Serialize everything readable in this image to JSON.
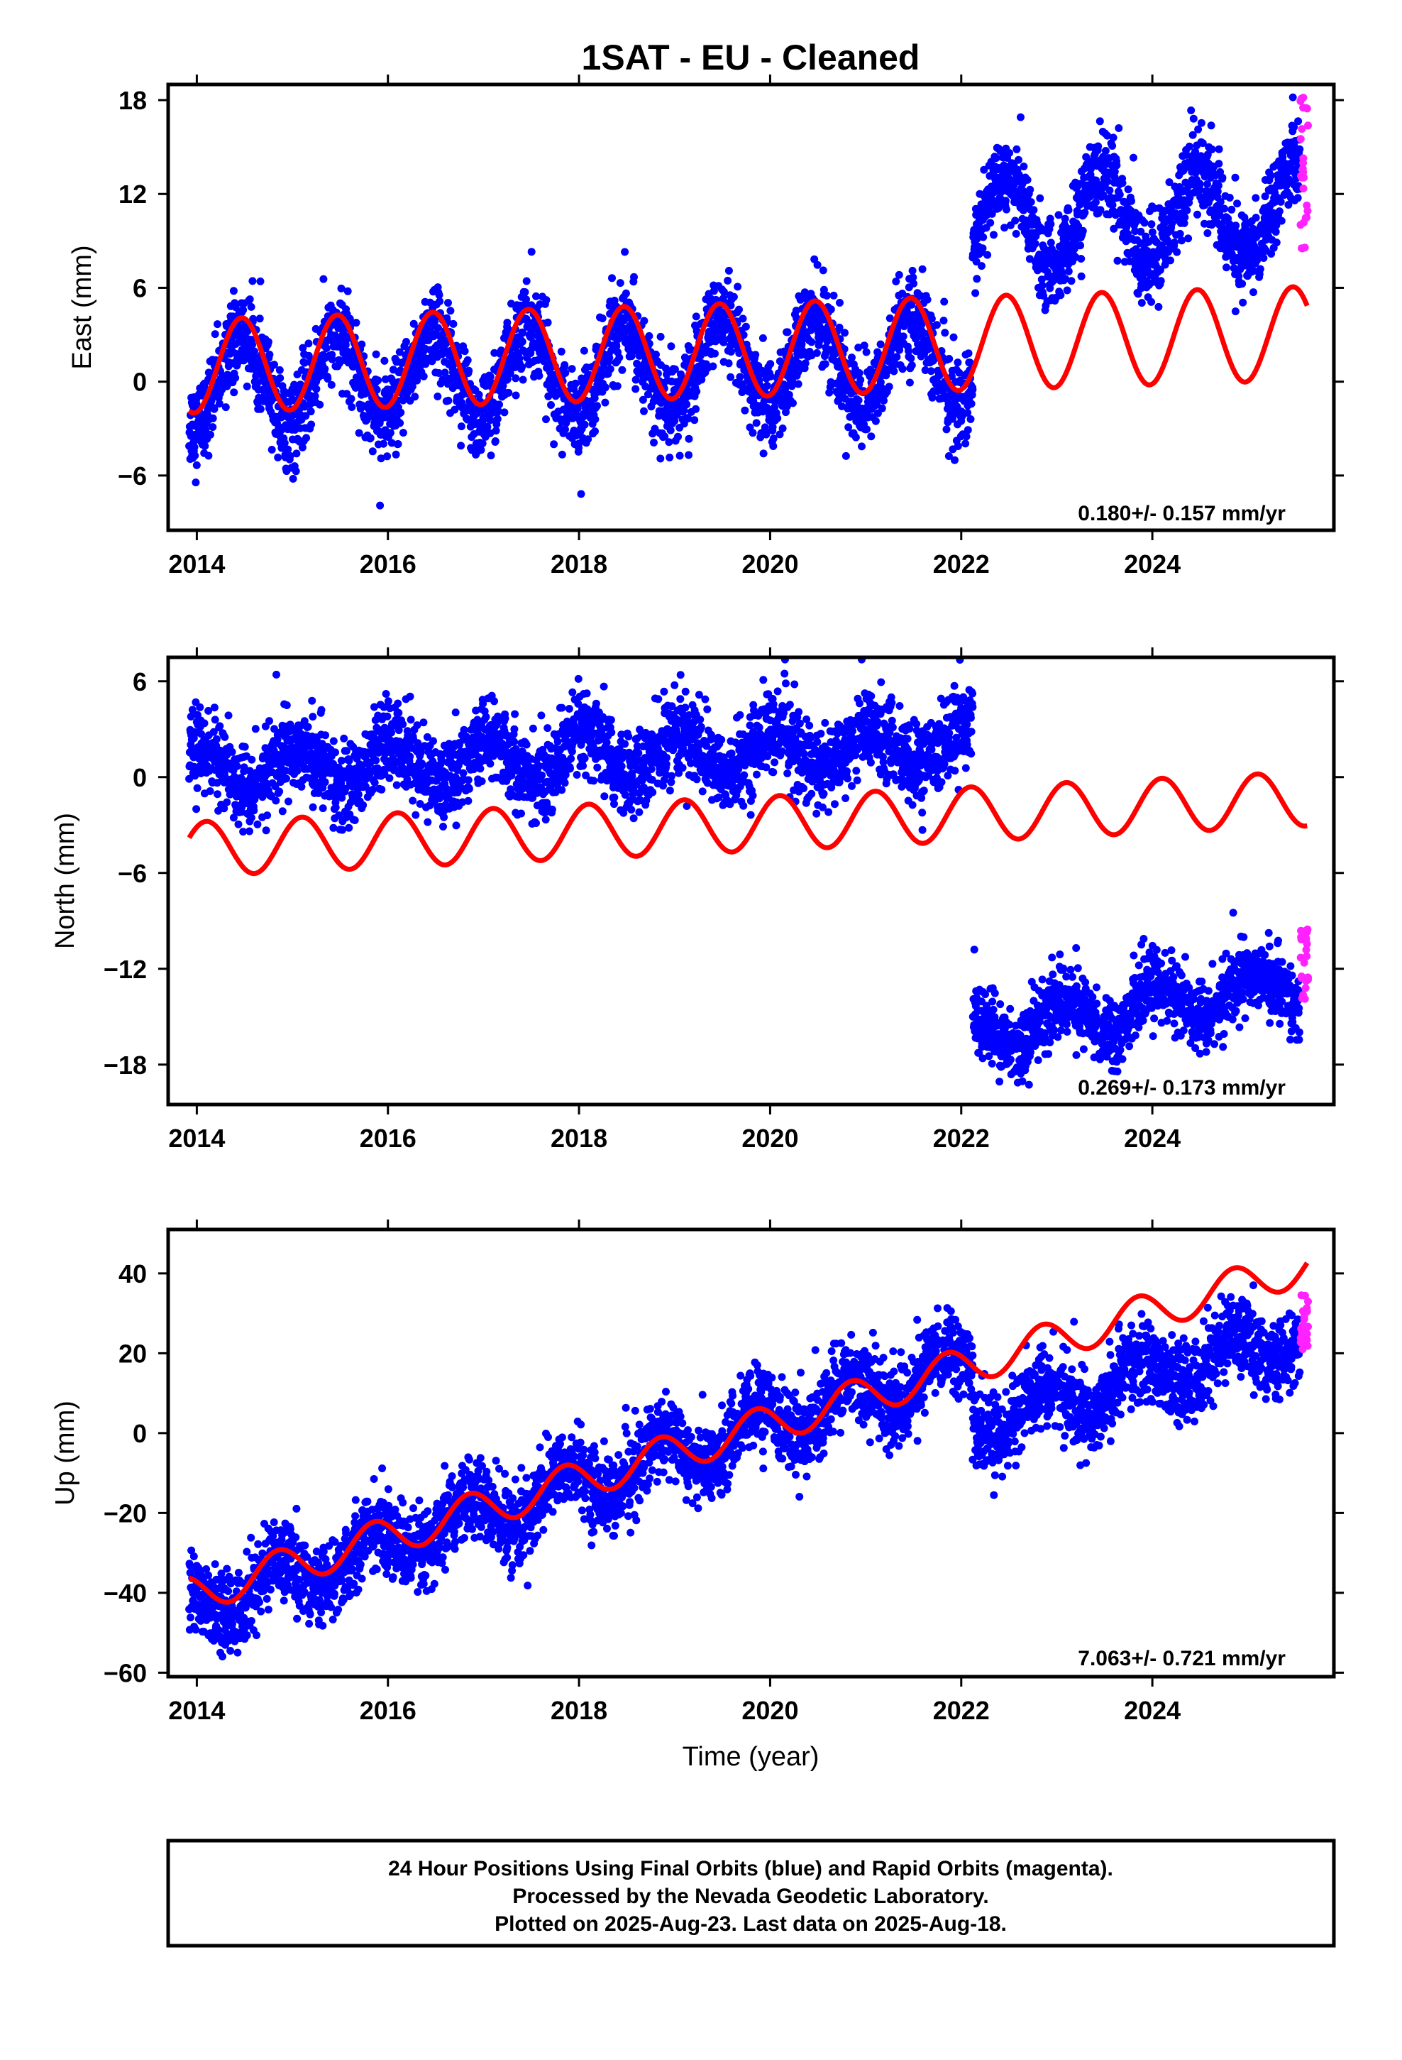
{
  "title": "1SAT  - EU - Cleaned",
  "xlabel": "Time (year)",
  "footer": [
    "24 Hour Positions Using Final Orbits (blue) and Rapid Orbits (magenta).",
    "Processed by the Nevada Geodetic Laboratory.",
    "Plotted on 2025-Aug-23. Last data on 2025-Aug-18."
  ],
  "colors": {
    "final_orbits": "#0000ff",
    "rapid_orbits": "#ff22ff",
    "model_fit": "#ff0000",
    "frame": "#000000"
  },
  "chart_data": [
    {
      "type": "scatter",
      "component": "east",
      "ylabel": "East (mm)",
      "xlim": [
        2013.7,
        2025.9
      ],
      "ylim": [
        -9.5,
        19
      ],
      "xticks": [
        "2014",
        "2016",
        "2018",
        "2020",
        "2022",
        "2024"
      ],
      "yticks": [
        "-6",
        "0",
        "6",
        "12",
        "18"
      ],
      "rate_label": "0.180+/- 0.157 mm/yr",
      "series": [
        {
          "name": "Final orbits",
          "segments": [
            {
              "start": 2013.92,
              "end": 2022.12,
              "offset": 0,
              "trend": 0.18,
              "amplitude": 2.8,
              "phase": 0.22,
              "noise": 1.4
            },
            {
              "start": 2022.12,
              "end": 2025.55,
              "offset": 10.0,
              "trend": 0.3,
              "amplitude": 3.0,
              "phase": 0.22,
              "noise": 1.4
            }
          ]
        },
        {
          "name": "Rapid orbits",
          "start": 2025.55,
          "end": 2025.63,
          "min": 8.5,
          "max": 18.2
        }
      ],
      "model": {
        "start": 2013.92,
        "end": 2025.62,
        "offset_at_2014": 1.0,
        "trend": 0.18,
        "amplitude": 3.0,
        "phase": 0.22
      }
    },
    {
      "type": "scatter",
      "component": "north",
      "ylabel": "North (mm)",
      "xlim": [
        2013.7,
        2025.9
      ],
      "ylim": [
        -20.5,
        7.5
      ],
      "xticks": [
        "2014",
        "2016",
        "2018",
        "2020",
        "2022",
        "2024"
      ],
      "yticks": [
        "-18",
        "-12",
        "-6",
        "0",
        "6"
      ],
      "rate_label": "0.269+/- 0.173 mm/yr",
      "series": [
        {
          "name": "Final orbits",
          "segments": [
            {
              "start": 2013.92,
              "end": 2022.12,
              "offset": 0.4,
              "trend": 0.2,
              "amplitude": 1.3,
              "phase": 0.8,
              "noise": 1.3
            },
            {
              "start": 2022.12,
              "end": 2025.55,
              "offset": -16.0,
              "trend": 0.9,
              "amplitude": 1.2,
              "phase": 0.8,
              "noise": 1.1
            }
          ]
        },
        {
          "name": "Rapid orbits",
          "start": 2025.55,
          "end": 2025.63,
          "min": -14.0,
          "max": -9.5
        }
      ],
      "model": {
        "start": 2013.92,
        "end": 2025.62,
        "offset_at_2014": -4.5,
        "trend": 0.27,
        "amplitude": 1.7,
        "phase": 0.85
      }
    },
    {
      "type": "scatter",
      "component": "up",
      "ylabel": "Up (mm)",
      "xlim": [
        2013.7,
        2025.9
      ],
      "ylim": [
        -61,
        51
      ],
      "xticks": [
        "2014",
        "2016",
        "2018",
        "2020",
        "2022",
        "2024"
      ],
      "yticks": [
        "-60",
        "-40",
        "-20",
        "0",
        "20",
        "40"
      ],
      "rate_label": "7.063+/- 0.721 mm/yr",
      "series": [
        {
          "name": "Final orbits",
          "segments": [
            {
              "start": 2013.92,
              "end": 2022.12,
              "offset": -44.0,
              "trend": 7.6,
              "amplitude": 5.5,
              "phase": 0.6,
              "noise": 5.0
            },
            {
              "start": 2022.12,
              "end": 2025.55,
              "offset": 2.0,
              "trend": 6.5,
              "amplitude": 5.0,
              "phase": 0.6,
              "noise": 5.0
            }
          ]
        },
        {
          "name": "Rapid orbits",
          "start": 2025.55,
          "end": 2025.63,
          "min": 21,
          "max": 36
        }
      ],
      "model": {
        "start": 2013.92,
        "end": 2025.62,
        "offset_at_2014": -40.0,
        "trend": 7.06,
        "amplitude": 4.7,
        "phase": 0.6
      }
    }
  ]
}
